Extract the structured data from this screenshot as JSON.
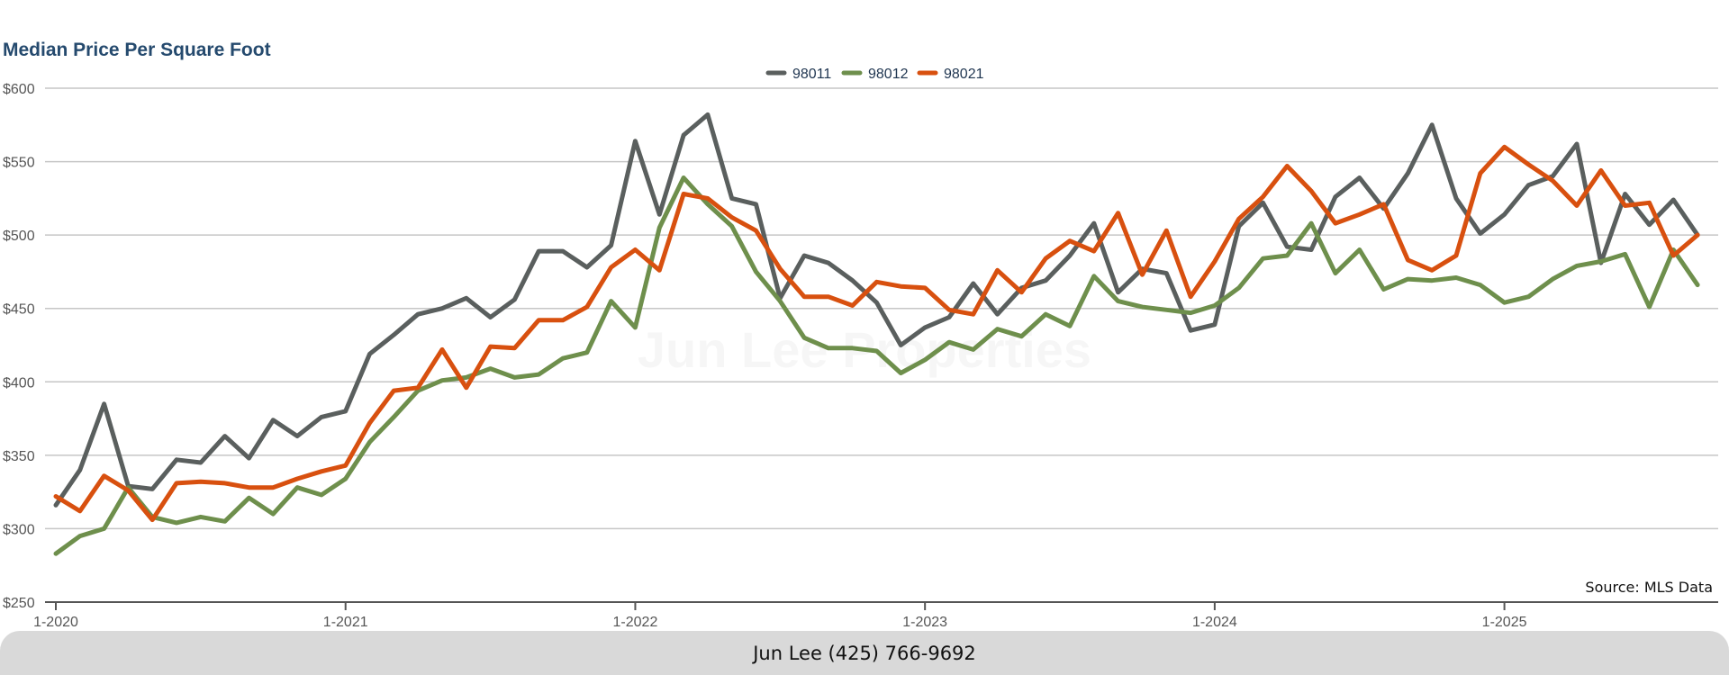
{
  "chart_data": {
    "type": "line",
    "title": "Median Price Per Square Foot",
    "xlabel": "",
    "ylabel": "",
    "ylim": [
      250,
      600
    ],
    "y_ticks": [
      "$250",
      "$300",
      "$350",
      "$400",
      "$450",
      "$500",
      "$550",
      "$600"
    ],
    "x_ticks": [
      "1-2020",
      "1-2021",
      "1-2022",
      "1-2023",
      "1-2024",
      "1-2025"
    ],
    "x_start": "1-2020",
    "x_end": "9-2025",
    "grid": true,
    "legend_placement": "top-center",
    "series": [
      {
        "name": "98011",
        "color": "#5a5f5e",
        "values": [
          316,
          340,
          385,
          329,
          327,
          347,
          345,
          363,
          348,
          374,
          363,
          376,
          380,
          419,
          432,
          446,
          450,
          457,
          444,
          456,
          489,
          489,
          478,
          493,
          564,
          514,
          568,
          582,
          525,
          521,
          457,
          486,
          481,
          469,
          454,
          425,
          437,
          444,
          467,
          446,
          464,
          469,
          486,
          508,
          461,
          477,
          474,
          435,
          439,
          506,
          522,
          492,
          490,
          526,
          539,
          518,
          542,
          575,
          525,
          501,
          514,
          534,
          540,
          562,
          481,
          528,
          507,
          524,
          500
        ]
      },
      {
        "name": "98012",
        "color": "#6e8f4c",
        "values": [
          283,
          295,
          300,
          328,
          308,
          304,
          308,
          305,
          321,
          310,
          328,
          323,
          334,
          359,
          376,
          394,
          401,
          403,
          409,
          403,
          405,
          416,
          420,
          455,
          437,
          505,
          539,
          521,
          506,
          475,
          455,
          430,
          423,
          423,
          421,
          406,
          415,
          427,
          422,
          436,
          431,
          446,
          438,
          472,
          455,
          451,
          449,
          447,
          452,
          464,
          484,
          486,
          508,
          474,
          490,
          463,
          470,
          469,
          471,
          466,
          454,
          458,
          470,
          479,
          482,
          487,
          451,
          490,
          466
        ]
      },
      {
        "name": "98021",
        "color": "#d8500f",
        "values": [
          322,
          312,
          336,
          326,
          306,
          331,
          332,
          331,
          328,
          328,
          334,
          339,
          343,
          372,
          394,
          396,
          422,
          396,
          424,
          423,
          442,
          442,
          451,
          478,
          490,
          476,
          528,
          525,
          512,
          503,
          477,
          458,
          458,
          452,
          468,
          465,
          464,
          449,
          446,
          476,
          461,
          484,
          496,
          489,
          515,
          473,
          503,
          458,
          482,
          511,
          526,
          547,
          530,
          508,
          514,
          521,
          483,
          476,
          486,
          542,
          560,
          548,
          537,
          520,
          544,
          520,
          522,
          486,
          500
        ]
      }
    ]
  },
  "watermark": "Jun Lee Properties",
  "source": "Source: MLS Data",
  "footer": "Jun Lee (425) 766-9692"
}
